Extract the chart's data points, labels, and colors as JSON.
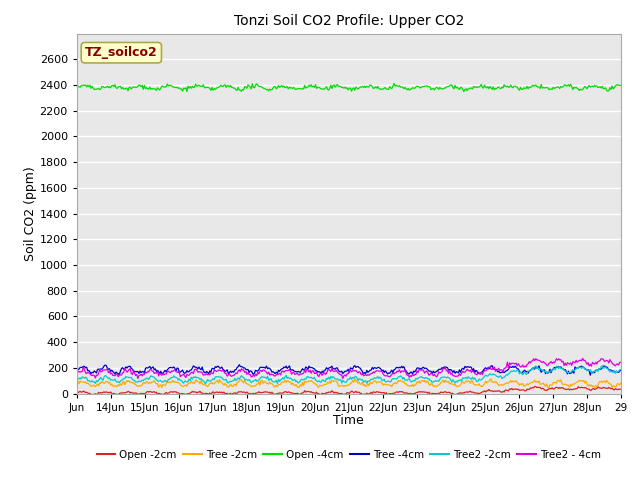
{
  "title": "Tonzi Soil CO2 Profile: Upper CO2",
  "xlabel": "Time",
  "ylabel": "Soil CO2 (ppm)",
  "ylim": [
    0,
    2800
  ],
  "yticks": [
    0,
    200,
    400,
    600,
    800,
    1000,
    1200,
    1400,
    1600,
    1800,
    2000,
    2200,
    2400,
    2600
  ],
  "x_start_day": 13,
  "x_end_day": 29,
  "xtick_days": [
    13,
    14,
    15,
    16,
    17,
    18,
    19,
    20,
    21,
    22,
    23,
    24,
    25,
    26,
    27,
    28,
    29
  ],
  "xtick_labels": [
    "Jun",
    "14Jun",
    "15Jun",
    "16Jun",
    "17Jun",
    "18Jun",
    "19Jun",
    "20Jun",
    "21Jun",
    "22Jun",
    "23Jun",
    "24Jun",
    "25Jun",
    "26Jun",
    "27Jun",
    "28Jun",
    "29"
  ],
  "legend_label": "TZ_soilco2",
  "legend_box_facecolor": "#ffffcc",
  "legend_box_edgecolor": "#aaaa44",
  "legend_text_color": "#880000",
  "background_color": "#e8e8e8",
  "grid_color": "#ffffff",
  "series": [
    {
      "label": "Open -2cm",
      "color": "#dd2222",
      "base": 5,
      "amp": 8,
      "freq": 1.5,
      "noise": 4,
      "spike_day": 24.5,
      "spike_base": 40
    },
    {
      "label": "Tree -2cm",
      "color": "#ffaa00",
      "base": 78,
      "amp": 18,
      "freq": 1.5,
      "noise": 8,
      "spike_day": null,
      "spike_base": 0
    },
    {
      "label": "Open -4cm",
      "color": "#00dd00",
      "base": 2380,
      "amp": 12,
      "freq": 1.2,
      "noise": 8,
      "spike_day": null,
      "spike_base": 0
    },
    {
      "label": "Tree -4cm",
      "color": "#0000cc",
      "base": 185,
      "amp": 22,
      "freq": 1.5,
      "noise": 8,
      "spike_day": null,
      "spike_base": 0
    },
    {
      "label": "Tree2 -2cm",
      "color": "#00cccc",
      "base": 110,
      "amp": 18,
      "freq": 1.5,
      "noise": 7,
      "spike_day": 24.5,
      "spike_base": 185
    },
    {
      "label": "Tree2 - 4cm",
      "color": "#dd00dd",
      "base": 160,
      "amp": 20,
      "freq": 1.5,
      "noise": 9,
      "spike_day": 24.5,
      "spike_base": 245
    }
  ],
  "n_points": 500
}
